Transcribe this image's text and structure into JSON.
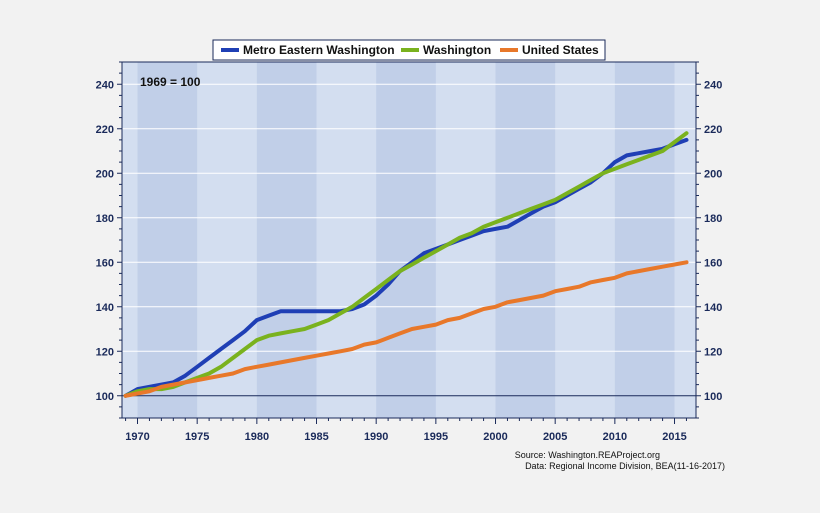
{
  "chart_data": {
    "type": "line",
    "annotation": "1969 = 100",
    "source_line1": "Source: Washington.REAProject.org",
    "source_line2": "Data: Regional Income Division, BEA(11-16-2017)",
    "x": [
      1969,
      1970,
      1971,
      1972,
      1973,
      1974,
      1975,
      1976,
      1977,
      1978,
      1979,
      1980,
      1981,
      1982,
      1983,
      1984,
      1985,
      1986,
      1987,
      1988,
      1989,
      1990,
      1991,
      1992,
      1993,
      1994,
      1995,
      1996,
      1997,
      1998,
      1999,
      2000,
      2001,
      2002,
      2003,
      2004,
      2005,
      2006,
      2007,
      2008,
      2009,
      2010,
      2011,
      2012,
      2013,
      2014,
      2015,
      2016
    ],
    "xticks": [
      1970,
      1975,
      1980,
      1985,
      1990,
      1995,
      2000,
      2005,
      2010,
      2015
    ],
    "xlim": [
      1968.7,
      2016.8
    ],
    "ylim": [
      90,
      250
    ],
    "yticks": [
      100,
      120,
      140,
      160,
      180,
      200,
      220,
      240
    ],
    "grid": true,
    "legend_position": "top",
    "series": [
      {
        "name": "Metro Eastern Washington",
        "color": "#1f3fb5",
        "values": [
          100,
          103,
          104,
          105,
          106,
          109,
          113,
          117,
          121,
          125,
          129,
          134,
          136,
          138,
          138,
          138,
          138,
          138,
          138,
          139,
          141,
          145,
          150,
          156,
          160,
          164,
          166,
          168,
          170,
          172,
          174,
          175,
          176,
          179,
          182,
          185,
          187,
          190,
          193,
          196,
          200,
          205,
          208,
          209,
          210,
          211,
          213,
          215
        ]
      },
      {
        "name": "Washington",
        "color": "#7ab21e",
        "values": [
          100,
          102,
          103,
          103,
          104,
          106,
          108,
          110,
          113,
          117,
          121,
          125,
          127,
          128,
          129,
          130,
          132,
          134,
          137,
          140,
          144,
          148,
          152,
          156,
          159,
          162,
          165,
          168,
          171,
          173,
          176,
          178,
          180,
          182,
          184,
          186,
          188,
          191,
          194,
          197,
          200,
          202,
          204,
          206,
          208,
          210,
          214,
          218
        ]
      },
      {
        "name": "United States",
        "color": "#e8782a",
        "values": [
          100,
          101,
          102,
          104,
          105,
          106,
          107,
          108,
          109,
          110,
          112,
          113,
          114,
          115,
          116,
          117,
          118,
          119,
          120,
          121,
          123,
          124,
          126,
          128,
          130,
          131,
          132,
          134,
          135,
          137,
          139,
          140,
          142,
          143,
          144,
          145,
          147,
          148,
          149,
          151,
          152,
          153,
          155,
          156,
          157,
          158,
          159,
          160
        ]
      }
    ]
  }
}
